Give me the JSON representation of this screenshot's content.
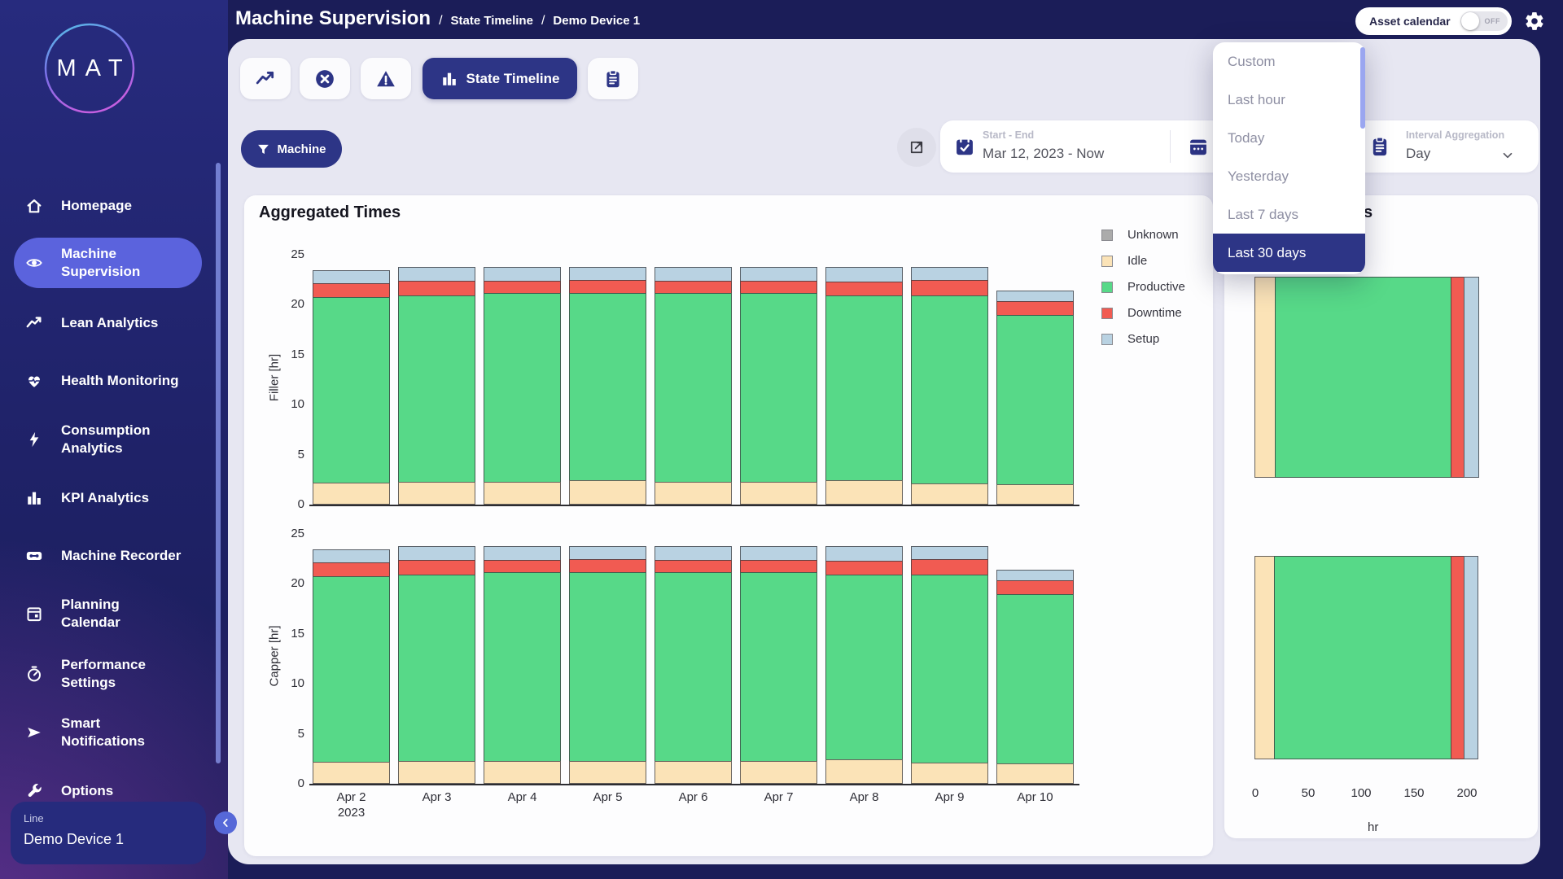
{
  "header": {
    "title": "Machine Supervision",
    "breadcrumb": [
      "State Timeline",
      "Demo Device 1"
    ],
    "asset_calendar": {
      "label": "Asset calendar",
      "state": "OFF"
    }
  },
  "sidebar": {
    "logo": "MAT",
    "items": [
      {
        "icon": "home",
        "label": "Homepage",
        "active": false
      },
      {
        "icon": "eye",
        "label": "Machine\nSupervision",
        "active": true
      },
      {
        "icon": "trend",
        "label": "Lean Analytics",
        "active": false
      },
      {
        "icon": "heart",
        "label": "Health Monitoring",
        "active": false
      },
      {
        "icon": "bolt",
        "label": "Consumption\nAnalytics",
        "active": false
      },
      {
        "icon": "bars",
        "label": "KPI Analytics",
        "active": false
      },
      {
        "icon": "tape",
        "label": "Machine Recorder",
        "active": false
      },
      {
        "icon": "calendar",
        "label": "Planning\nCalendar",
        "active": false
      },
      {
        "icon": "gauge",
        "label": "Performance\nSettings",
        "active": false
      },
      {
        "icon": "send",
        "label": "Smart\nNotifications",
        "active": false
      },
      {
        "icon": "wrench",
        "label": "Options",
        "active": false
      }
    ],
    "device_panel": {
      "label": "Line",
      "value": "Demo Device 1"
    }
  },
  "tabs": [
    {
      "name": "trend",
      "icon": "trend",
      "label": "",
      "active": false
    },
    {
      "name": "errors",
      "icon": "circle-x",
      "label": "",
      "active": false
    },
    {
      "name": "alarms",
      "icon": "warning",
      "label": "",
      "active": false
    },
    {
      "name": "state-timeline",
      "icon": "bars",
      "label": "State Timeline",
      "active": true
    },
    {
      "name": "report",
      "icon": "clipboard",
      "label": "",
      "active": false
    }
  ],
  "filter_bar": {
    "machine_button": "Machine",
    "start_end": {
      "label": "Start - End",
      "value": "Mar 12, 2023 - Now"
    },
    "interval": {
      "label": "Interval Aggregation",
      "value": "Day"
    }
  },
  "time_range_dropdown": {
    "options": [
      "Custom",
      "Last hour",
      "Today",
      "Yesterday",
      "Last 7 days",
      "Last 30 days"
    ],
    "selected": "Last 30 days"
  },
  "left_panel_title": "Aggregated Times",
  "right_panel_title": "Aggregated Times",
  "legend": [
    {
      "label": "Unknown",
      "color": "#ababab"
    },
    {
      "label": "Idle",
      "color": "#fbe3b7"
    },
    {
      "label": "Productive",
      "color": "#57d988"
    },
    {
      "label": "Downtime",
      "color": "#f15b52"
    },
    {
      "label": "Setup",
      "color": "#b9d2e2"
    }
  ],
  "chart_data": [
    {
      "type": "bar",
      "stacked": true,
      "orientation": "vertical",
      "title": "Aggregated Times",
      "ylabel": "Filler [hr]",
      "ylim": [
        0,
        25
      ],
      "yticks": [
        0,
        5,
        10,
        15,
        20,
        25
      ],
      "categories": [
        "Apr 2\n2023",
        "Apr 3",
        "Apr 4",
        "Apr 5",
        "Apr 6",
        "Apr 7",
        "Apr 8",
        "Apr 9",
        "Apr 10"
      ],
      "series": [
        {
          "name": "Idle",
          "color": "#fbe3b7",
          "values": [
            2.2,
            2.3,
            2.3,
            2.4,
            2.3,
            2.3,
            2.4,
            2.1,
            2.0
          ]
        },
        {
          "name": "Productive",
          "color": "#57d988",
          "values": [
            18.6,
            18.7,
            18.9,
            18.8,
            18.9,
            18.9,
            18.6,
            18.9,
            17.0
          ]
        },
        {
          "name": "Downtime",
          "color": "#f15b52",
          "values": [
            1.5,
            1.5,
            1.3,
            1.4,
            1.3,
            1.3,
            1.4,
            1.6,
            1.5
          ]
        },
        {
          "name": "Setup",
          "color": "#b9d2e2",
          "values": [
            1.4,
            1.5,
            1.5,
            1.4,
            1.5,
            1.5,
            1.6,
            1.4,
            1.1
          ]
        }
      ]
    },
    {
      "type": "bar",
      "stacked": true,
      "orientation": "vertical",
      "title": "Aggregated Times",
      "ylabel": "Capper [hr]",
      "ylim": [
        0,
        25
      ],
      "yticks": [
        0,
        5,
        10,
        15,
        20,
        25
      ],
      "categories": [
        "Apr 2\n2023",
        "Apr 3",
        "Apr 4",
        "Apr 5",
        "Apr 6",
        "Apr 7",
        "Apr 8",
        "Apr 9",
        "Apr 10"
      ],
      "series": [
        {
          "name": "Idle",
          "color": "#fbe3b7",
          "values": [
            2.2,
            2.3,
            2.3,
            2.3,
            2.3,
            2.3,
            2.4,
            2.1,
            2.0
          ]
        },
        {
          "name": "Productive",
          "color": "#57d988",
          "values": [
            18.6,
            18.7,
            18.9,
            18.9,
            18.9,
            18.9,
            18.6,
            18.9,
            17.0
          ]
        },
        {
          "name": "Downtime",
          "color": "#f15b52",
          "values": [
            1.5,
            1.5,
            1.3,
            1.4,
            1.3,
            1.3,
            1.4,
            1.6,
            1.5
          ]
        },
        {
          "name": "Setup",
          "color": "#b9d2e2",
          "values": [
            1.4,
            1.5,
            1.5,
            1.4,
            1.5,
            1.5,
            1.6,
            1.4,
            1.1
          ]
        }
      ]
    },
    {
      "type": "bar",
      "stacked": true,
      "orientation": "horizontal",
      "title": "Aggregated Times",
      "xlabel": "hr",
      "xlim": [
        0,
        215
      ],
      "xticks": [
        0,
        50,
        100,
        150,
        200
      ],
      "categories": [
        "",
        ""
      ],
      "series": [
        {
          "name": "Idle",
          "color": "#fbe3b7",
          "values": [
            20,
            19
          ]
        },
        {
          "name": "Productive",
          "color": "#57d988",
          "values": [
            167,
            168
          ]
        },
        {
          "name": "Downtime",
          "color": "#f15b52",
          "values": [
            13,
            13
          ]
        },
        {
          "name": "Setup",
          "color": "#b9d2e2",
          "values": [
            15,
            14
          ]
        }
      ]
    }
  ]
}
